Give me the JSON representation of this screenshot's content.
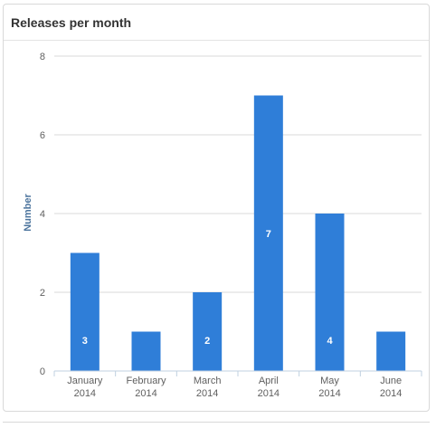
{
  "panel": {
    "title": "Releases per month"
  },
  "chart_data": {
    "type": "bar",
    "title": "Releases per month",
    "ylabel": "Number",
    "xlabel": "",
    "ylim": [
      0,
      8
    ],
    "yticks": [
      0,
      2,
      4,
      6,
      8
    ],
    "grid": true,
    "legend": "none",
    "bar_color": "#2f7ed8",
    "categories": [
      [
        "January",
        "2014"
      ],
      [
        "February",
        "2014"
      ],
      [
        "March",
        "2014"
      ],
      [
        "April",
        "2014"
      ],
      [
        "May",
        "2014"
      ],
      [
        "June",
        "2014"
      ]
    ],
    "values": [
      3,
      1,
      2,
      7,
      4,
      1
    ],
    "data_labels": [
      "3",
      "",
      "2",
      "7",
      "4",
      ""
    ]
  }
}
